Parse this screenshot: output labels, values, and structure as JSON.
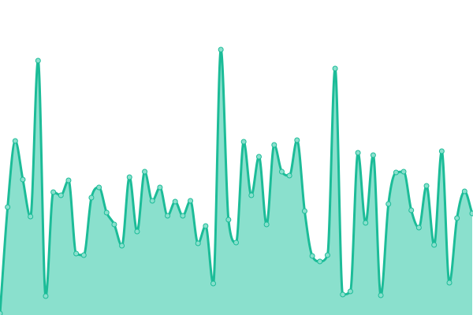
{
  "chart_data": {
    "type": "area",
    "title": "",
    "xlabel": "",
    "ylabel": "",
    "grid": false,
    "legend": "none",
    "curve": "smooth",
    "ylim": [
      0,
      400
    ],
    "x": [
      0,
      1,
      2,
      3,
      4,
      5,
      6,
      7,
      8,
      9,
      10,
      11,
      12,
      13,
      14,
      15,
      16,
      17,
      18,
      19,
      20,
      21,
      22,
      23,
      24,
      25,
      26,
      27,
      28,
      29,
      30,
      31,
      32,
      33,
      34,
      35,
      36,
      37,
      38,
      39,
      40,
      41,
      42,
      43,
      44,
      45,
      46,
      47,
      48,
      49,
      50,
      51,
      52,
      53,
      54,
      55,
      56,
      57,
      58,
      59,
      60,
      61,
      62
    ],
    "values": [
      2,
      137,
      221,
      172,
      125,
      323,
      24,
      156,
      152,
      171,
      78,
      76,
      149,
      162,
      130,
      115,
      88,
      175,
      106,
      182,
      145,
      162,
      126,
      144,
      126,
      145,
      91,
      113,
      40,
      337,
      121,
      92,
      220,
      152,
      201,
      115,
      216,
      182,
      177,
      222,
      132,
      75,
      68,
      76,
      313,
      26,
      30,
      206,
      117,
      203,
      25,
      141,
      181,
      182,
      133,
      111,
      164,
      89,
      208,
      41,
      123,
      157,
      129
    ],
    "colors": {
      "line": "#1cbc98",
      "fill": "#8ae0cd",
      "point_fill": "#8ae0cd",
      "point_stroke": "#1cbc98"
    }
  }
}
